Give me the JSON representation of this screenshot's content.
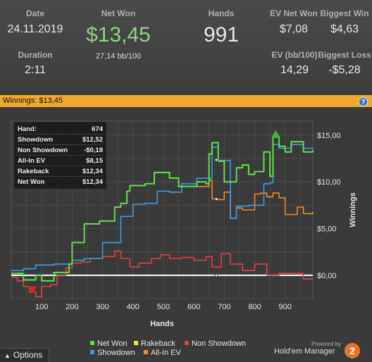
{
  "stats": {
    "date": {
      "label": "Date",
      "value": "24.11.2019"
    },
    "duration": {
      "label": "Duration",
      "value": "2:11"
    },
    "net_won": {
      "label": "Net Won",
      "value": "$13,45",
      "sub": "27,14 bb/100"
    },
    "hands": {
      "label": "Hands",
      "value": "991"
    },
    "ev_net_won": {
      "label": "EV Net Won",
      "value": "$7,08"
    },
    "biggest_win": {
      "label": "Biggest Win",
      "value": "$4,63"
    },
    "ev_bb100": {
      "label": "EV (bb/100)",
      "value": "14,29"
    },
    "biggest_loss": {
      "label": "Biggest Loss",
      "value": "-$5,28"
    }
  },
  "winnings_bar": {
    "label": "Winnings: $13,45",
    "help": "?"
  },
  "tooltip": [
    {
      "label": "Hand:",
      "value": "674"
    },
    {
      "label": "Showdown",
      "value": "$12,52"
    },
    {
      "label": "Non Showdown",
      "value": "-$0,18"
    },
    {
      "label": "All-In EV",
      "value": "$8,15"
    },
    {
      "label": "Rakeback",
      "value": "$12,34"
    },
    {
      "label": "Net Won",
      "value": "$12,34"
    }
  ],
  "legend": [
    {
      "name": "Net Won",
      "color": "#5ee04a"
    },
    {
      "name": "Rakeback",
      "color": "#f0e040"
    },
    {
      "name": "Non Showdown",
      "color": "#e04040"
    },
    {
      "name": "Showdown",
      "color": "#3a9ae8"
    },
    {
      "name": "All-In EV",
      "color": "#f08c28"
    }
  ],
  "footer": {
    "options": "Options",
    "powered": "Powered by",
    "brand": "Hold'em Manager",
    "badge": "2"
  },
  "chart_data": {
    "type": "line",
    "xlabel": "Hands",
    "ylabel": "Winnings",
    "xlim": [
      0,
      991
    ],
    "ylim": [
      -2.5,
      16.5
    ],
    "x_ticks": [
      100,
      200,
      300,
      400,
      500,
      600,
      700,
      800,
      900
    ],
    "y_ticks": [
      "$0,00",
      "$5,00",
      "$10,00",
      "$15,00"
    ],
    "y_tick_values": [
      0,
      5,
      10,
      15
    ],
    "series": [
      {
        "name": "Net Won",
        "color": "#5ee04a",
        "x": [
          0,
          40,
          80,
          100,
          140,
          190,
          200,
          240,
          290,
          340,
          360,
          380,
          390,
          440,
          470,
          520,
          550,
          610,
          640,
          650,
          660,
          680,
          700,
          740,
          760,
          780,
          800,
          830,
          850,
          860,
          880,
          900,
          920,
          960,
          991
        ],
        "y": [
          0.2,
          -0.5,
          0,
          -0.6,
          0.3,
          1.2,
          3.5,
          5.5,
          5.8,
          7.3,
          7.7,
          9,
          9.6,
          9.8,
          11,
          10.4,
          9.5,
          10,
          9.8,
          13,
          14.2,
          12.2,
          10,
          11.5,
          11.8,
          10.8,
          11.1,
          13.2,
          10.6,
          14.8,
          13.8,
          13.2,
          14.3,
          13.2,
          13.4
        ]
      },
      {
        "name": "Showdown",
        "color": "#3a9ae8",
        "x": [
          0,
          40,
          80,
          140,
          200,
          240,
          300,
          360,
          400,
          440,
          480,
          520,
          560,
          610,
          660,
          680,
          720,
          740,
          780,
          830,
          850,
          860,
          880,
          920,
          960,
          991
        ],
        "y": [
          0.5,
          0.7,
          1.1,
          1.2,
          1.6,
          1.8,
          3.5,
          6.3,
          7.6,
          7.7,
          9,
          8.9,
          9.8,
          10.4,
          13.7,
          12.3,
          6.1,
          7.4,
          7.5,
          9.8,
          9.9,
          14,
          13.6,
          14,
          13.6,
          13.5
        ]
      },
      {
        "name": "All-In EV",
        "color": "#f08c28",
        "x": [
          600,
          650,
          660,
          680,
          700,
          720,
          740,
          760,
          780,
          800,
          820,
          840,
          860,
          880,
          900,
          940,
          960,
          991
        ],
        "y": [
          9.5,
          10.2,
          8.2,
          8.1,
          8.9,
          6.1,
          7.2,
          7,
          7,
          8.7,
          8.8,
          8.4,
          8.8,
          8.3,
          6.5,
          7.3,
          6.6,
          6.8
        ]
      },
      {
        "name": "Non Showdown",
        "color": "#e04040",
        "x": [
          0,
          20,
          40,
          60,
          80,
          100,
          130,
          150,
          180,
          200,
          230,
          260,
          300,
          340,
          360,
          390,
          420,
          460,
          490,
          520,
          560,
          600,
          640,
          660,
          690,
          720,
          760,
          800,
          840,
          880,
          920,
          960,
          991
        ],
        "y": [
          -0.2,
          -0.6,
          -1.2,
          -1.8,
          -2.3,
          -1.2,
          -1,
          0,
          0.8,
          1.3,
          1.4,
          1.8,
          2,
          2.6,
          1.8,
          0.9,
          1.3,
          1.8,
          2.2,
          1.8,
          1.9,
          1.6,
          2,
          0.9,
          2.3,
          1.2,
          0.5,
          1.2,
          0,
          0.2,
          0.2,
          -0.4,
          -0.4
        ]
      },
      {
        "name": "Rakeback",
        "color": "#f0e040",
        "x": [
          0,
          991
        ],
        "y": [
          0,
          0
        ]
      }
    ],
    "markers": [
      {
        "type": "max",
        "x": 869,
        "y": 15.1,
        "color": "#3ab33a"
      },
      {
        "type": "min",
        "x": 70,
        "y": -1.5,
        "color": "#e02020"
      }
    ],
    "hover_hand": 674
  }
}
